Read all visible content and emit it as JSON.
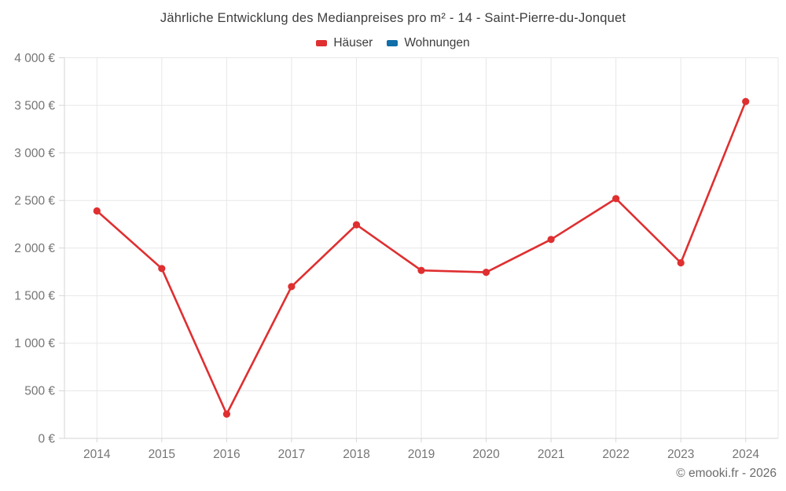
{
  "header": {
    "title": "Jährliche Entwicklung des Medianpreises pro m² - 14 - Saint-Pierre-du-Jonquet"
  },
  "legend": {
    "items": [
      {
        "label": "Häuser",
        "color": "#df2f30"
      },
      {
        "label": "Wohnungen",
        "color": "#106ea8"
      }
    ]
  },
  "footer": {
    "credit": "© emooki.fr - 2026"
  },
  "colors": {
    "grid": "#e7e7e7",
    "axis": "#d6d6d6",
    "tick_label": "#757575"
  },
  "chart_data": {
    "type": "line",
    "title": "Jährliche Entwicklung des Medianpreises pro m² - 14 - Saint-Pierre-du-Jonquet",
    "categories": [
      "2014",
      "2015",
      "2016",
      "2017",
      "2018",
      "2019",
      "2020",
      "2021",
      "2022",
      "2023",
      "2024"
    ],
    "series": [
      {
        "name": "Häuser",
        "color": "#df2f30",
        "values": [
          2390,
          1785,
          255,
          1595,
          2245,
          1765,
          1745,
          2090,
          2520,
          1845,
          3540
        ]
      },
      {
        "name": "Wohnungen",
        "color": "#106ea8",
        "values": []
      }
    ],
    "xlabel": "",
    "ylabel": "",
    "ylim": [
      0,
      4000
    ],
    "ytick_step": 500,
    "ytick_labels": [
      "0 €",
      "500 €",
      "1 000 €",
      "1 500 €",
      "2 000 €",
      "2 500 €",
      "3 000 €",
      "3 500 €",
      "4 000 €"
    ],
    "grid": true,
    "legend_position": "top"
  }
}
